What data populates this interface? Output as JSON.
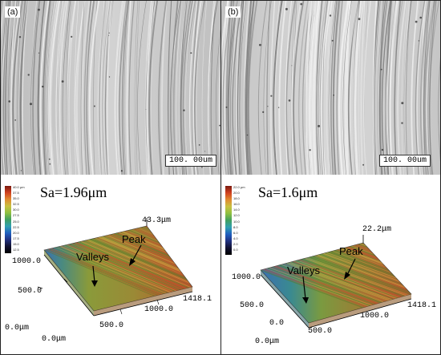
{
  "panels": [
    {
      "tag": "(a)",
      "scale_bar": "100. 00um",
      "sa": "Sa=1.96μm",
      "colorbar_ticks": [
        "40.0 µm",
        "37.5",
        "35.0",
        "32.5",
        "30.0",
        "27.5",
        "25.0",
        "22.5",
        "20.0",
        "17.5",
        "15.0",
        "12.5",
        "10.0",
        "7.5",
        "5.0",
        "2.5",
        "0.0"
      ],
      "z_max": "43.3μm",
      "y_tick_top": "1000.0",
      "y_tick_mid": "500.0",
      "origin": "0.0μm",
      "x_tick_0": "0.0μm",
      "x_tick_1": "500.0",
      "x_tick_2": "1000.0",
      "x_tick_3": "1418.1",
      "peak_label": "Peak",
      "valleys_label": "Valleys"
    },
    {
      "tag": "(b)",
      "scale_bar": "100. 00um",
      "sa": "Sa=1.6μm",
      "colorbar_ticks": [
        "22.0 µm",
        "20.0",
        "18.0",
        "16.0",
        "14.0",
        "12.0",
        "10.0",
        "8.0",
        "6.0",
        "4.0",
        "2.0",
        "0.0"
      ],
      "z_max": "22.2μm",
      "y_tick_top": "1000.0",
      "y_tick_mid": "500.0",
      "origin": "0.0",
      "x_tick_0": "0.0μm",
      "x_tick_1": "500.0",
      "x_tick_2": "1000.0",
      "x_tick_3": "1418.1",
      "peak_label": "Peak",
      "valleys_label": "Valleys"
    }
  ],
  "colors": {
    "sem_background": "#c8c8c8",
    "surface_green": "#8a9a3a",
    "surface_red": "#b8542c",
    "surface_blue": "#3a6fb0"
  }
}
